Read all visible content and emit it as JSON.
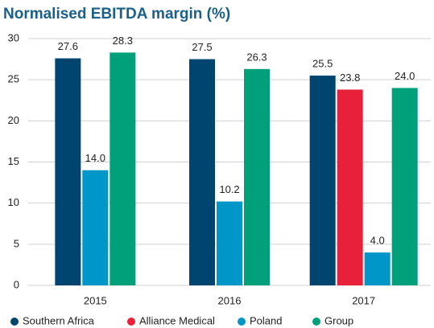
{
  "chart_data": {
    "type": "bar",
    "title": "Normalised EBITDA margin (%)",
    "categories": [
      "2015",
      "2016",
      "2017"
    ],
    "series": [
      {
        "name": "Southern Africa",
        "color": "#004470",
        "values": [
          27.6,
          27.5,
          25.5
        ],
        "value_labels": [
          "27.6",
          "27.5",
          "25.5"
        ]
      },
      {
        "name": "Alliance Medical",
        "color": "#e8203a",
        "values": [
          null,
          null,
          23.8
        ],
        "value_labels": [
          null,
          null,
          "23.8"
        ]
      },
      {
        "name": "Poland",
        "color": "#0096c8",
        "values": [
          14.0,
          10.2,
          4.0
        ],
        "value_labels": [
          "14.0",
          "10.2",
          "4.0"
        ]
      },
      {
        "name": "Group",
        "color": "#00a07a",
        "values": [
          28.3,
          26.3,
          24.0
        ],
        "value_labels": [
          "28.3",
          "26.3",
          "24.0"
        ]
      }
    ],
    "ylim": [
      0,
      30
    ],
    "yticks": [
      0,
      5,
      10,
      15,
      20,
      25,
      30
    ],
    "grid": true,
    "legend": "bottom"
  }
}
